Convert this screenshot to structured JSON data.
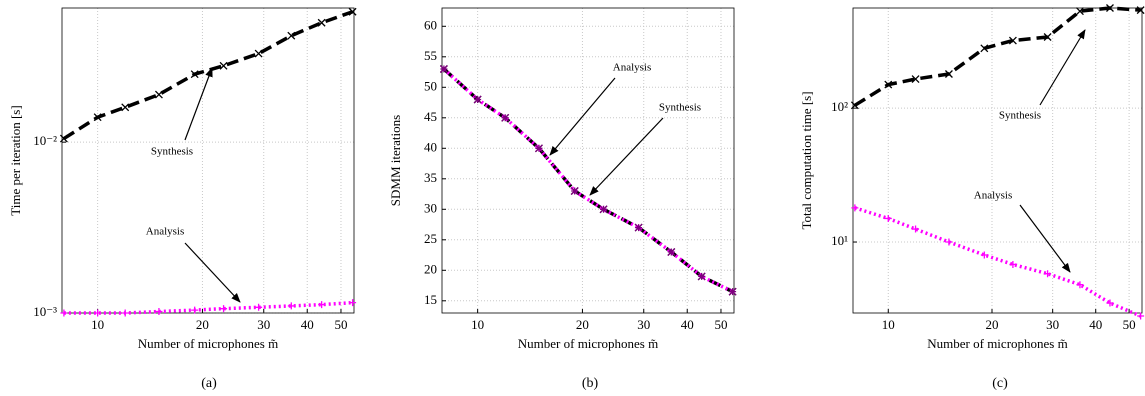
{
  "chart_data": [
    {
      "type": "line",
      "caption": "(a)",
      "xlabel": "Number of microphones m̃",
      "ylabel": "Time per iteration [s]",
      "xscale": "log",
      "yscale": "log",
      "grid": true,
      "x": [
        8,
        10,
        12,
        15,
        19,
        23,
        29,
        36,
        44,
        54
      ],
      "xlim": [
        7.9,
        54.5
      ],
      "xticks": [
        10,
        20,
        30,
        40,
        50
      ],
      "ylim": [
        0.001,
        0.061
      ],
      "yticks": [
        {
          "value": 0.001,
          "label": "10⁻³"
        },
        {
          "value": 0.01,
          "label": "10⁻²"
        }
      ],
      "series": [
        {
          "name": "Synthesis",
          "color": "#000000",
          "line_style": "dashed",
          "marker": "x",
          "values": [
            0.0105,
            0.014,
            0.016,
            0.019,
            0.025,
            0.028,
            0.033,
            0.042,
            0.05,
            0.058
          ]
        },
        {
          "name": "Analysis",
          "color": "#ff00ff",
          "line_style": "dotted",
          "marker": "+",
          "values": [
            0.001,
            0.001,
            0.001,
            0.00102,
            0.00104,
            0.00106,
            0.00108,
            0.0011,
            0.00112,
            0.00115
          ]
        }
      ],
      "annotations": [
        "Synthesis",
        "Analysis"
      ]
    },
    {
      "type": "line",
      "caption": "(b)",
      "xlabel": "Number of microphones m̃",
      "ylabel": "SDMM iterations",
      "xscale": "log",
      "yscale": "linear",
      "grid": true,
      "x": [
        8,
        10,
        12,
        15,
        19,
        23,
        29,
        36,
        44,
        54
      ],
      "xlim": [
        7.9,
        54.5
      ],
      "xticks": [
        10,
        20,
        30,
        40,
        50
      ],
      "ylim": [
        13,
        63
      ],
      "yticks": [
        15,
        20,
        25,
        30,
        35,
        40,
        45,
        50,
        55,
        60
      ],
      "series": [
        {
          "name": "Synthesis",
          "color": "#000000",
          "line_style": "dashed",
          "marker": "x",
          "values": [
            53,
            48,
            45,
            40,
            33,
            30,
            27,
            23,
            19,
            16.5
          ]
        },
        {
          "name": "Analysis",
          "color": "#ff00ff",
          "line_style": "dotted",
          "marker": "*",
          "values": [
            53,
            48,
            45,
            40,
            33,
            30,
            27,
            23,
            19,
            16.5
          ]
        }
      ],
      "annotations": [
        "Analysis",
        "Synthesis"
      ]
    },
    {
      "type": "line",
      "caption": "(c)",
      "xlabel": "Number of microphones m̃",
      "ylabel": "Total computation time [s]",
      "xscale": "log",
      "yscale": "log",
      "grid": true,
      "x": [
        8,
        10,
        12,
        15,
        19,
        23,
        29,
        36,
        44,
        54
      ],
      "xlim": [
        7.9,
        54.5
      ],
      "xticks": [
        10,
        20,
        30,
        40,
        50
      ],
      "ylim": [
        2.95,
        560
      ],
      "yticks": [
        {
          "value": 10,
          "label": "10¹"
        },
        {
          "value": 100,
          "label": "10²"
        }
      ],
      "series": [
        {
          "name": "Synthesis",
          "color": "#000000",
          "line_style": "dashed",
          "marker": "x",
          "values": [
            105,
            150,
            165,
            180,
            280,
            320,
            340,
            530,
            560,
            540
          ]
        },
        {
          "name": "Analysis",
          "color": "#ff00ff",
          "line_style": "dotted",
          "marker": "+",
          "values": [
            18,
            15,
            12.5,
            10,
            8,
            6.8,
            5.8,
            4.8,
            3.5,
            2.8
          ]
        }
      ],
      "annotations": [
        "Synthesis",
        "Analysis"
      ]
    }
  ]
}
